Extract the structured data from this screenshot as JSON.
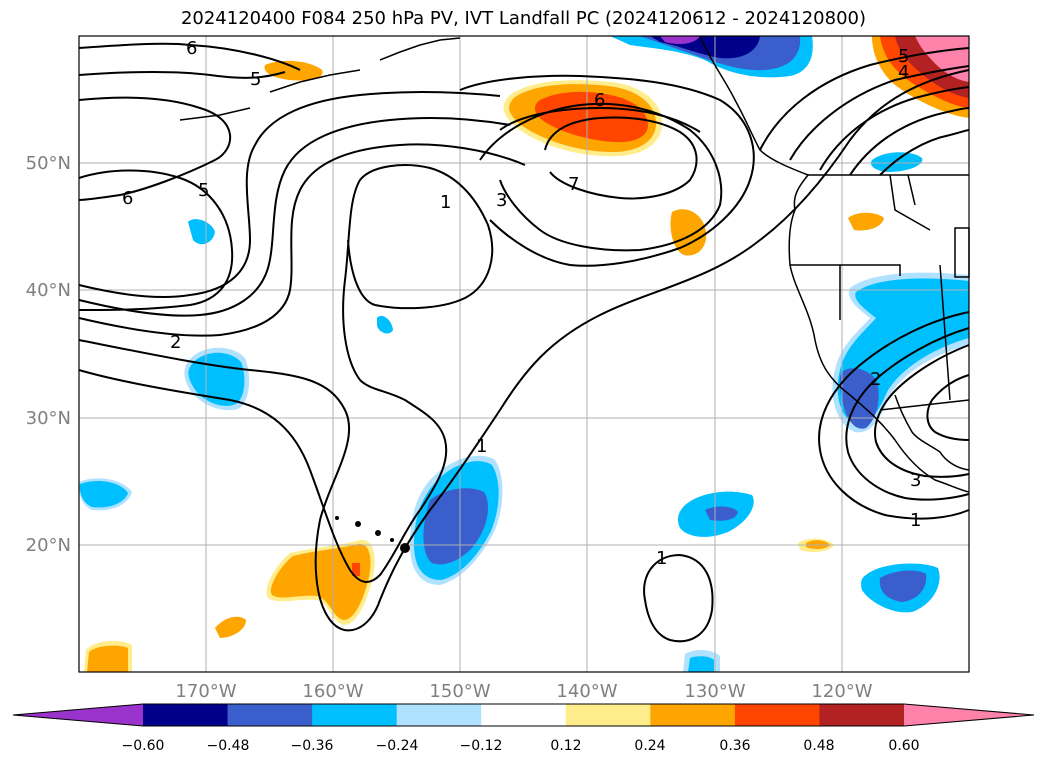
{
  "title": "2024120400 F084 250 hPa PV, IVT Landfall PC (2024120612 - 2024120800)",
  "map": {
    "lat_labels": [
      "50°N",
      "40°N",
      "30°N",
      "20°N"
    ],
    "lon_labels": [
      "170°W",
      "160°W",
      "150°W",
      "140°W",
      "130°W",
      "120°W"
    ],
    "contour_labels": [
      "6",
      "5",
      "6",
      "5",
      "2",
      "1",
      "3",
      "7",
      "6",
      "5",
      "4",
      "1",
      "1",
      "2",
      "3",
      "1"
    ]
  },
  "colorbar": {
    "colors": [
      "#9933cc",
      "#00008b",
      "#3a5fcd",
      "#00bfff",
      "#b0e2ff",
      "#ffffff",
      "#ffec8b",
      "#ffa500",
      "#ff4500",
      "#b22222",
      "#ff82ab"
    ],
    "tick_labels": [
      "−0.60",
      "−0.48",
      "−0.36",
      "−0.24",
      "−0.12",
      "0.12",
      "0.24",
      "0.36",
      "0.48",
      "0.60"
    ]
  }
}
